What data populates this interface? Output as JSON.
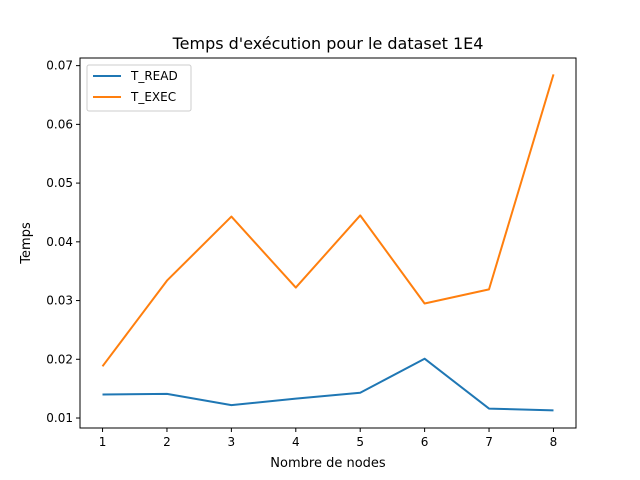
{
  "chart_data": {
    "type": "line",
    "title": "Temps d'exécution pour le dataset  1E4",
    "xlabel": "Nombre de nodes",
    "ylabel": "Temps",
    "x": [
      1,
      2,
      3,
      4,
      5,
      6,
      7,
      8
    ],
    "xticks": [
      "1",
      "2",
      "3",
      "4",
      "5",
      "6",
      "7",
      "8"
    ],
    "yticks": [
      "0.01",
      "0.02",
      "0.03",
      "0.04",
      "0.05",
      "0.06",
      "0.07"
    ],
    "xlim": [
      0.65,
      8.35
    ],
    "ylim": [
      0.0083,
      0.0713
    ],
    "grid": false,
    "legend_position": "top-left",
    "series": [
      {
        "name": "T_READ",
        "color": "#1f77b4",
        "values": [
          0.014,
          0.0141,
          0.0122,
          0.0133,
          0.0143,
          0.0201,
          0.0116,
          0.0113
        ]
      },
      {
        "name": "T_EXEC",
        "color": "#ff7f0e",
        "values": [
          0.0188,
          0.0334,
          0.0443,
          0.0322,
          0.0445,
          0.0295,
          0.0319,
          0.0685
        ]
      }
    ]
  }
}
